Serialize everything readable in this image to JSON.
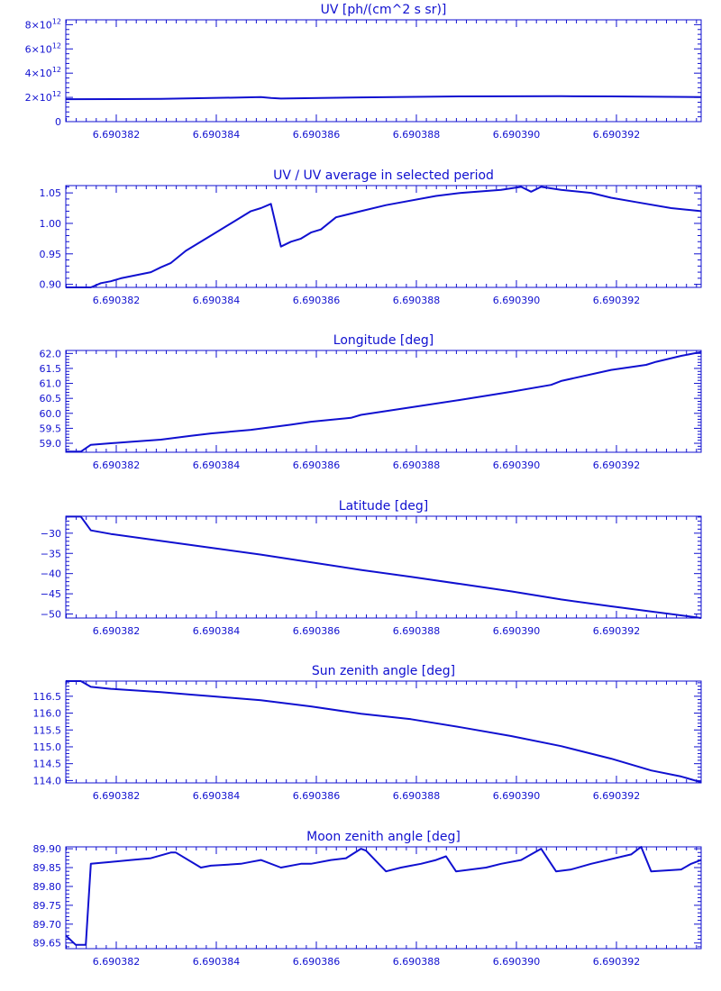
{
  "chart_data": [
    {
      "type": "line",
      "title": "UV [ph/(cm^2 s sr)]",
      "xlim": [
        6.6903811,
        6.6903938
      ],
      "x_ticks": [
        "6.690382",
        "6.690384",
        "6.690386",
        "6.690388",
        "6.690390",
        "6.690392"
      ],
      "ylim": [
        0,
        8400000000000.0
      ],
      "y_ticks": [
        {
          "value": 0,
          "base": "0",
          "exp": ""
        },
        {
          "value": 2000000000000.0,
          "base": "2×10",
          "exp": "12"
        },
        {
          "value": 4000000000000.0,
          "base": "4×10",
          "exp": "12"
        },
        {
          "value": 6000000000000.0,
          "base": "6×10",
          "exp": "12"
        },
        {
          "value": 8000000000000.0,
          "base": "8×10",
          "exp": "12"
        }
      ],
      "x": [
        6.6903811,
        6.690383,
        6.690385,
        6.6903852,
        6.6903854,
        6.690387,
        6.690389,
        6.690391,
        6.690392,
        6.6903938
      ],
      "values": [
        1850000000000.0,
        1870000000000.0,
        2020000000000.0,
        1950000000000.0,
        1900000000000.0,
        2000000000000.0,
        2080000000000.0,
        2100000000000.0,
        2080000000000.0,
        2030000000000.0
      ]
    },
    {
      "type": "line",
      "title": "UV / UV average in selected period",
      "xlim": [
        6.6903811,
        6.6903938
      ],
      "x_ticks": [
        "6.690382",
        "6.690384",
        "6.690386",
        "6.690388",
        "6.690390",
        "6.690392"
      ],
      "ylim": [
        0.895,
        1.062
      ],
      "y_ticks": [
        {
          "value": 0.9,
          "base": "0.90",
          "exp": ""
        },
        {
          "value": 0.95,
          "base": "0.95",
          "exp": ""
        },
        {
          "value": 1.0,
          "base": "1.00",
          "exp": ""
        },
        {
          "value": 1.05,
          "base": "1.05",
          "exp": ""
        }
      ],
      "x": [
        6.6903811,
        6.6903816,
        6.6903818,
        6.690382,
        6.6903822,
        6.6903825,
        6.6903828,
        6.690383,
        6.6903832,
        6.6903835,
        6.690384,
        6.6903845,
        6.6903848,
        6.690385,
        6.6903852,
        6.6903854,
        6.6903856,
        6.6903858,
        6.690386,
        6.6903862,
        6.6903865,
        6.690387,
        6.6903875,
        6.6903885,
        6.690389,
        6.6903898,
        6.6903902,
        6.6903904,
        6.6903906,
        6.690391,
        6.6903916,
        6.690392,
        6.6903925,
        6.6903932,
        6.6903938
      ],
      "values": [
        0.895,
        0.895,
        0.902,
        0.905,
        0.91,
        0.915,
        0.92,
        0.928,
        0.935,
        0.955,
        0.98,
        1.005,
        1.02,
        1.025,
        1.032,
        0.962,
        0.97,
        0.975,
        0.985,
        0.99,
        1.01,
        1.02,
        1.03,
        1.045,
        1.05,
        1.055,
        1.06,
        1.052,
        1.06,
        1.055,
        1.05,
        1.042,
        1.035,
        1.025,
        1.02
      ]
    },
    {
      "type": "line",
      "title": "Longitude [deg]",
      "xlim": [
        6.6903811,
        6.6903938
      ],
      "x_ticks": [
        "6.690382",
        "6.690384",
        "6.690386",
        "6.690388",
        "6.690390",
        "6.690392"
      ],
      "ylim": [
        58.7,
        62.1
      ],
      "y_ticks": [
        {
          "value": 59.0,
          "base": "59.0",
          "exp": ""
        },
        {
          "value": 59.5,
          "base": "59.5",
          "exp": ""
        },
        {
          "value": 60.0,
          "base": "60.0",
          "exp": ""
        },
        {
          "value": 60.5,
          "base": "60.5",
          "exp": ""
        },
        {
          "value": 61.0,
          "base": "61.0",
          "exp": ""
        },
        {
          "value": 61.5,
          "base": "61.5",
          "exp": ""
        },
        {
          "value": 62.0,
          "base": "62.0",
          "exp": ""
        }
      ],
      "x": [
        6.6903811,
        6.6903814,
        6.6903816,
        6.690382,
        6.6903824,
        6.690383,
        6.6903836,
        6.690384,
        6.6903848,
        6.6903856,
        6.690386,
        6.6903868,
        6.690387,
        6.690388,
        6.690389,
        6.69039,
        6.6903908,
        6.690391,
        6.690392,
        6.6903927,
        6.6903929,
        6.6903934,
        6.6903938
      ],
      "values": [
        58.72,
        58.72,
        58.95,
        59.0,
        59.05,
        59.12,
        59.25,
        59.33,
        59.45,
        59.62,
        59.72,
        59.85,
        59.95,
        60.2,
        60.45,
        60.72,
        60.95,
        61.08,
        61.45,
        61.62,
        61.72,
        61.92,
        62.05
      ]
    },
    {
      "type": "line",
      "title": "Latitude [deg]",
      "xlim": [
        6.6903811,
        6.6903938
      ],
      "x_ticks": [
        "6.690382",
        "6.690384",
        "6.690386",
        "6.690388",
        "6.690390",
        "6.690392"
      ],
      "ylim": [
        -51.0,
        -25.8
      ],
      "y_ticks": [
        {
          "value": -50,
          "base": "−50",
          "exp": ""
        },
        {
          "value": -45,
          "base": "−45",
          "exp": ""
        },
        {
          "value": -40,
          "base": "−40",
          "exp": ""
        },
        {
          "value": -35,
          "base": "−35",
          "exp": ""
        },
        {
          "value": -30,
          "base": "−30",
          "exp": ""
        }
      ],
      "x": [
        6.6903811,
        6.6903814,
        6.6903816,
        6.690382,
        6.690383,
        6.690384,
        6.690385,
        6.690386,
        6.690387,
        6.690388,
        6.690389,
        6.69039,
        6.690391,
        6.690392,
        6.6903938
      ],
      "values": [
        -25.9,
        -25.9,
        -29.3,
        -30.2,
        -31.9,
        -33.6,
        -35.3,
        -37.2,
        -39.1,
        -40.8,
        -42.6,
        -44.4,
        -46.4,
        -48.1,
        -51.0
      ]
    },
    {
      "type": "line",
      "title": "Sun zenith angle [deg]",
      "xlim": [
        6.6903811,
        6.6903938
      ],
      "x_ticks": [
        "6.690382",
        "6.690384",
        "6.690386",
        "6.690388",
        "6.690390",
        "6.690392"
      ],
      "ylim": [
        113.93,
        116.95
      ],
      "y_ticks": [
        {
          "value": 114.0,
          "base": "114.0",
          "exp": ""
        },
        {
          "value": 114.5,
          "base": "114.5",
          "exp": ""
        },
        {
          "value": 115.0,
          "base": "115.0",
          "exp": ""
        },
        {
          "value": 115.5,
          "base": "115.5",
          "exp": ""
        },
        {
          "value": 116.0,
          "base": "116.0",
          "exp": ""
        },
        {
          "value": 116.5,
          "base": "116.5",
          "exp": ""
        }
      ],
      "x": [
        6.6903811,
        6.6903814,
        6.6903816,
        6.690382,
        6.690383,
        6.6903836,
        6.690384,
        6.690385,
        6.690386,
        6.690387,
        6.690388,
        6.690389,
        6.69039,
        6.690391,
        6.690392,
        6.6903928,
        6.6903934,
        6.6903938
      ],
      "values": [
        116.95,
        116.95,
        116.78,
        116.72,
        116.62,
        116.55,
        116.5,
        116.38,
        116.2,
        115.98,
        115.82,
        115.58,
        115.32,
        115.02,
        114.65,
        114.3,
        114.12,
        113.95
      ]
    },
    {
      "type": "line",
      "title": "Moon zenith angle [deg]",
      "xlim": [
        6.6903811,
        6.6903938
      ],
      "x_ticks": [
        "6.690382",
        "6.690384",
        "6.690386",
        "6.690388",
        "6.690390",
        "6.690392"
      ],
      "ylim": [
        89.635,
        89.905
      ],
      "y_ticks": [
        {
          "value": 89.65,
          "base": "89.65",
          "exp": ""
        },
        {
          "value": 89.7,
          "base": "89.70",
          "exp": ""
        },
        {
          "value": 89.75,
          "base": "89.75",
          "exp": ""
        },
        {
          "value": 89.8,
          "base": "89.80",
          "exp": ""
        },
        {
          "value": 89.85,
          "base": "89.85",
          "exp": ""
        },
        {
          "value": 89.9,
          "base": "89.90",
          "exp": ""
        }
      ],
      "x": [
        6.6903811,
        6.6903813,
        6.6903815,
        6.6903816,
        6.690382,
        6.6903824,
        6.6903828,
        6.6903832,
        6.6903833,
        6.6903838,
        6.690384,
        6.6903846,
        6.6903848,
        6.690385,
        6.6903854,
        6.6903858,
        6.690386,
        6.6903864,
        6.6903867,
        6.690387,
        6.6903871,
        6.6903875,
        6.6903878,
        6.690388,
        6.6903882,
        6.6903885,
        6.6903887,
        6.6903889,
        6.6903895,
        6.6903898,
        6.6903902,
        6.6903904,
        6.6903906,
        6.6903909,
        6.6903912,
        6.6903916,
        6.6903924,
        6.6903926,
        6.6903928,
        6.6903934,
        6.6903936,
        6.6903938
      ],
      "values": [
        89.67,
        89.645,
        89.645,
        89.86,
        89.865,
        89.87,
        89.875,
        89.89,
        89.89,
        89.85,
        89.855,
        89.86,
        89.865,
        89.87,
        89.85,
        89.86,
        89.86,
        89.87,
        89.875,
        89.9,
        89.895,
        89.84,
        89.85,
        89.855,
        89.86,
        89.87,
        89.88,
        89.84,
        89.85,
        89.86,
        89.87,
        89.885,
        89.9,
        89.84,
        89.845,
        89.86,
        89.885,
        89.905,
        89.84,
        89.845,
        89.86,
        89.87
      ]
    }
  ]
}
